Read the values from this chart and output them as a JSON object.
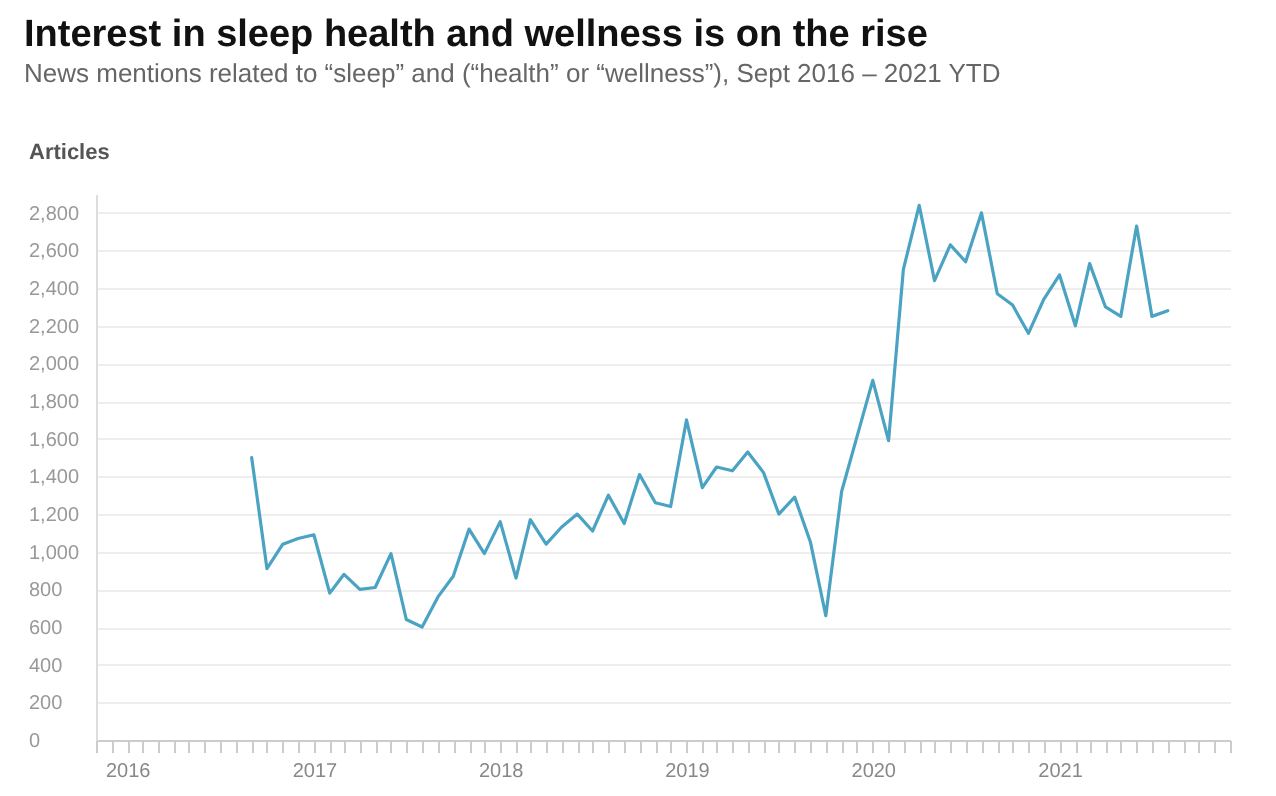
{
  "chart_data": {
    "type": "line",
    "title": "Interest in sleep health and wellness is on the rise",
    "subtitle": "News mentions related to “sleep” and (“health” or “wellness”), Sept 2016 – 2021 YTD",
    "ylabel": "Articles",
    "x": [
      "2016-09",
      "2016-10",
      "2016-11",
      "2016-12",
      "2017-01",
      "2017-02",
      "2017-03",
      "2017-04",
      "2017-05",
      "2017-06",
      "2017-07",
      "2017-08",
      "2017-09",
      "2017-10",
      "2017-11",
      "2017-12",
      "2018-01",
      "2018-02",
      "2018-03",
      "2018-04",
      "2018-05",
      "2018-06",
      "2018-07",
      "2018-08",
      "2018-09",
      "2018-10",
      "2018-11",
      "2018-12",
      "2019-01",
      "2019-02",
      "2019-03",
      "2019-04",
      "2019-05",
      "2019-06",
      "2019-07",
      "2019-08",
      "2019-09",
      "2019-10",
      "2019-11",
      "2019-12",
      "2020-01",
      "2020-02",
      "2020-03",
      "2020-04",
      "2020-05",
      "2020-06",
      "2020-07",
      "2020-08",
      "2020-09",
      "2020-10",
      "2020-11",
      "2020-12",
      "2021-01",
      "2021-02",
      "2021-03",
      "2021-04",
      "2021-05",
      "2021-06",
      "2021-07",
      "2021-08"
    ],
    "series": [
      {
        "color": "#4ba3c3",
        "values": [
          1500,
          910,
          1040,
          1070,
          1090,
          780,
          880,
          800,
          810,
          990,
          640,
          600,
          760,
          870,
          1120,
          990,
          1160,
          860,
          1170,
          1040,
          1130,
          1200,
          1110,
          1300,
          1150,
          1410,
          1260,
          1240,
          1700,
          1340,
          1450,
          1430,
          1530,
          1420,
          1200,
          1290,
          1050,
          660,
          1320,
          1610,
          1910,
          1590,
          2500,
          2840,
          2440,
          2630,
          2540,
          2800,
          2370,
          2310,
          2160,
          2340,
          2470,
          2200,
          2530,
          2300,
          2250,
          2730,
          2250,
          2280
        ]
      }
    ],
    "xlim": [
      "2015-11",
      "2021-12"
    ],
    "xticks": [
      {
        "value": "2015-11",
        "label": null
      },
      {
        "value": "2015-12",
        "label": null
      },
      {
        "value": "2016-01",
        "label": "2016"
      },
      {
        "value": "2016-02",
        "label": null
      },
      {
        "value": "2016-03",
        "label": null
      },
      {
        "value": "2016-04",
        "label": null
      },
      {
        "value": "2016-05",
        "label": null
      },
      {
        "value": "2016-06",
        "label": null
      },
      {
        "value": "2016-07",
        "label": null
      },
      {
        "value": "2016-08",
        "label": null
      },
      {
        "value": "2016-09",
        "label": null
      },
      {
        "value": "2016-10",
        "label": null
      },
      {
        "value": "2016-11",
        "label": null
      },
      {
        "value": "2016-12",
        "label": null
      },
      {
        "value": "2017-01",
        "label": "2017"
      },
      {
        "value": "2017-02",
        "label": null
      },
      {
        "value": "2017-03",
        "label": null
      },
      {
        "value": "2017-04",
        "label": null
      },
      {
        "value": "2017-05",
        "label": null
      },
      {
        "value": "2017-06",
        "label": null
      },
      {
        "value": "2017-07",
        "label": null
      },
      {
        "value": "2017-08",
        "label": null
      },
      {
        "value": "2017-09",
        "label": null
      },
      {
        "value": "2017-10",
        "label": null
      },
      {
        "value": "2017-11",
        "label": null
      },
      {
        "value": "2017-12",
        "label": null
      },
      {
        "value": "2018-01",
        "label": "2018"
      },
      {
        "value": "2018-02",
        "label": null
      },
      {
        "value": "2018-03",
        "label": null
      },
      {
        "value": "2018-04",
        "label": null
      },
      {
        "value": "2018-05",
        "label": null
      },
      {
        "value": "2018-06",
        "label": null
      },
      {
        "value": "2018-07",
        "label": null
      },
      {
        "value": "2018-08",
        "label": null
      },
      {
        "value": "2018-09",
        "label": null
      },
      {
        "value": "2018-10",
        "label": null
      },
      {
        "value": "2018-11",
        "label": null
      },
      {
        "value": "2018-12",
        "label": null
      },
      {
        "value": "2019-01",
        "label": "2019"
      },
      {
        "value": "2019-02",
        "label": null
      },
      {
        "value": "2019-03",
        "label": null
      },
      {
        "value": "2019-04",
        "label": null
      },
      {
        "value": "2019-05",
        "label": null
      },
      {
        "value": "2019-06",
        "label": null
      },
      {
        "value": "2019-07",
        "label": null
      },
      {
        "value": "2019-08",
        "label": null
      },
      {
        "value": "2019-09",
        "label": null
      },
      {
        "value": "2019-10",
        "label": null
      },
      {
        "value": "2019-11",
        "label": null
      },
      {
        "value": "2019-12",
        "label": null
      },
      {
        "value": "2020-01",
        "label": "2020"
      },
      {
        "value": "2020-02",
        "label": null
      },
      {
        "value": "2020-03",
        "label": null
      },
      {
        "value": "2020-04",
        "label": null
      },
      {
        "value": "2020-05",
        "label": null
      },
      {
        "value": "2020-06",
        "label": null
      },
      {
        "value": "2020-07",
        "label": null
      },
      {
        "value": "2020-08",
        "label": null
      },
      {
        "value": "2020-09",
        "label": null
      },
      {
        "value": "2020-10",
        "label": null
      },
      {
        "value": "2020-11",
        "label": null
      },
      {
        "value": "2020-12",
        "label": null
      },
      {
        "value": "2021-01",
        "label": "2021"
      },
      {
        "value": "2021-02",
        "label": null
      },
      {
        "value": "2021-03",
        "label": null
      },
      {
        "value": "2021-04",
        "label": null
      },
      {
        "value": "2021-05",
        "label": null
      },
      {
        "value": "2021-06",
        "label": null
      },
      {
        "value": "2021-07",
        "label": null
      },
      {
        "value": "2021-08",
        "label": null
      },
      {
        "value": "2021-09",
        "label": null
      },
      {
        "value": "2021-10",
        "label": null
      },
      {
        "value": "2021-11",
        "label": null
      },
      {
        "value": "2021-12",
        "label": null
      }
    ],
    "ylim": [
      0,
      2900
    ],
    "yticks": [
      {
        "value": 0,
        "label": "0"
      },
      {
        "value": 200,
        "label": "200"
      },
      {
        "value": 400,
        "label": "400"
      },
      {
        "value": 600,
        "label": "600"
      },
      {
        "value": 800,
        "label": "800"
      },
      {
        "value": 1000,
        "label": "1,000"
      },
      {
        "value": 1200,
        "label": "1,200"
      },
      {
        "value": 1400,
        "label": "1,400"
      },
      {
        "value": 1600,
        "label": "1,600"
      },
      {
        "value": 1800,
        "label": "1,800"
      },
      {
        "value": 2000,
        "label": "2,000"
      },
      {
        "value": 2200,
        "label": "2,200"
      },
      {
        "value": 2400,
        "label": "2,400"
      },
      {
        "value": 2600,
        "label": "2,600"
      },
      {
        "value": 2800,
        "label": "2,800"
      }
    ],
    "grid": "y",
    "legend": false,
    "marker": "none",
    "line_style": "solid"
  }
}
